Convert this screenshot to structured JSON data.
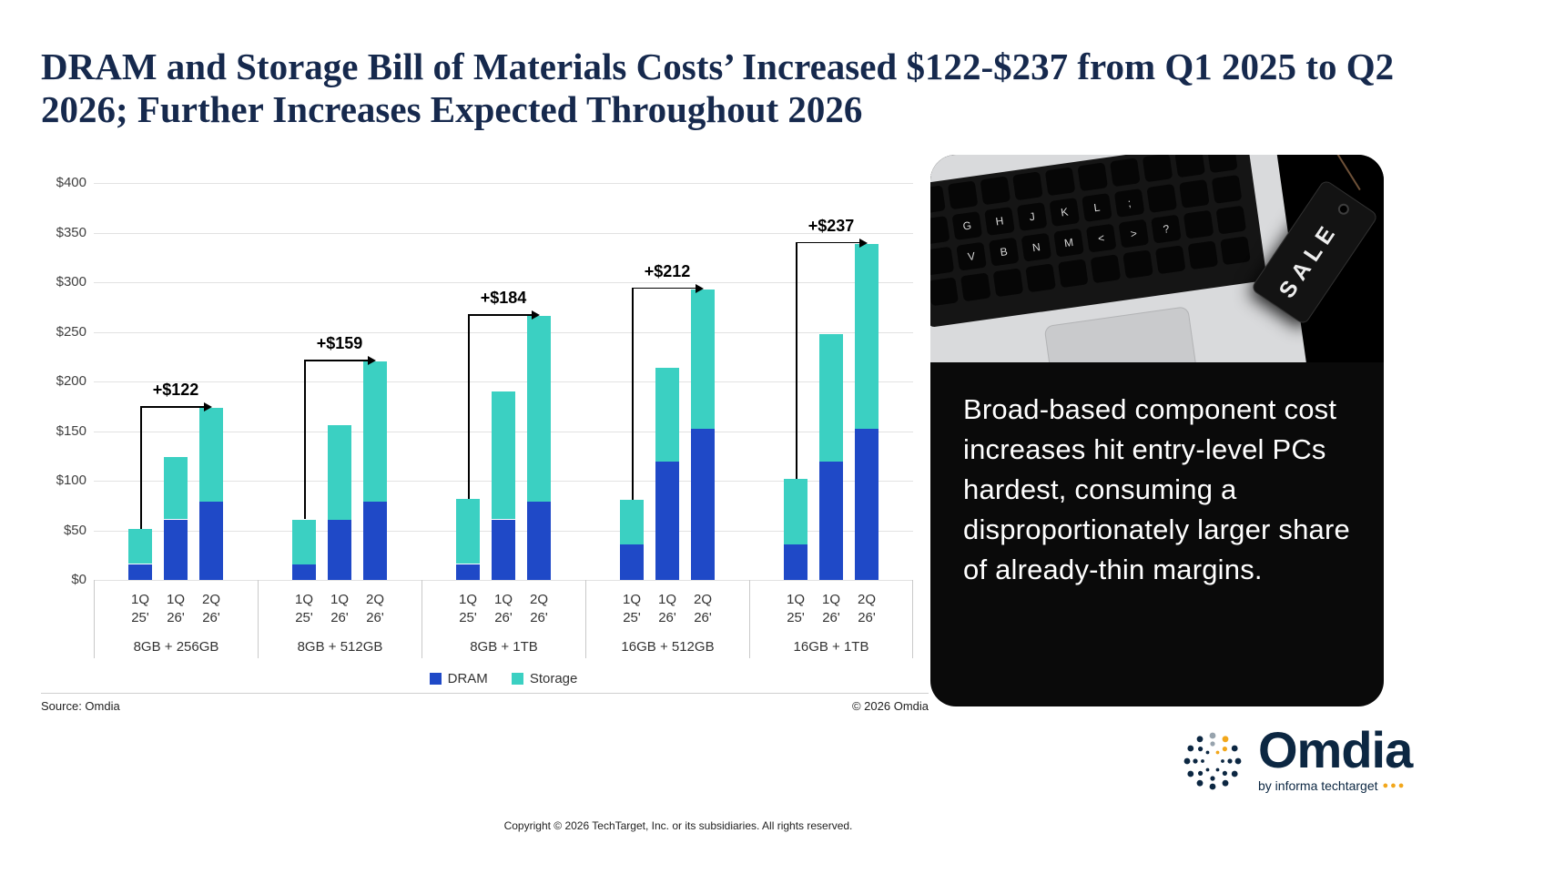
{
  "title": {
    "text": "DRAM and Storage Bill of Materials Costs’ Increased $122-$237 from Q1 2025 to Q2 2026; Further Increases Expected Throughout 2026"
  },
  "chart_data": {
    "type": "bar",
    "stacked": true,
    "title": "",
    "xlabel": "",
    "ylabel": "",
    "ylim": [
      0,
      400
    ],
    "ytick_step": 50,
    "ytick_labels": [
      "$0",
      "$50",
      "$100",
      "$150",
      "$200",
      "$250",
      "$300",
      "$350",
      "$400"
    ],
    "grid": true,
    "legend_position": "bottom",
    "series_names": [
      "DRAM",
      "Storage"
    ],
    "series_colors": [
      "#1f49c7",
      "#3bd0c2"
    ],
    "bar_labels": [
      [
        "1Q",
        "25'"
      ],
      [
        "1Q",
        "26'"
      ],
      [
        "2Q",
        "26'"
      ]
    ],
    "groups": [
      {
        "label": "8GB + 256GB",
        "annotation": "+$122",
        "dram": [
          16,
          61,
          79
        ],
        "storage": [
          35,
          63,
          94
        ]
      },
      {
        "label": "8GB + 512GB",
        "annotation": "+$159",
        "dram": [
          16,
          61,
          79
        ],
        "storage": [
          45,
          95,
          141
        ]
      },
      {
        "label": "8GB + 1TB",
        "annotation": "+$184",
        "dram": [
          16,
          61,
          79
        ],
        "storage": [
          66,
          129,
          187
        ]
      },
      {
        "label": "16GB + 512GB",
        "annotation": "+$212",
        "dram": [
          36,
          119,
          152
        ],
        "storage": [
          45,
          95,
          141
        ]
      },
      {
        "label": "16GB + 1TB",
        "annotation": "+$237",
        "dram": [
          36,
          119,
          152
        ],
        "storage": [
          66,
          129,
          187
        ]
      }
    ]
  },
  "chart_footer": {
    "source": "Source: Omdia",
    "copyright": "© 2026 Omdia"
  },
  "panel": {
    "text": "Broad-based component cost increases hit entry-level PCs hardest, consuming a disproportionately larger share of already-thin margins.",
    "sale_tag_label": "SALE",
    "keyboard_rows": [
      [
        "",
        "",
        "",
        "",
        "",
        "",
        "",
        "",
        "",
        ""
      ],
      [
        "",
        "G",
        "H",
        "J",
        "K",
        "L",
        ";",
        "",
        "",
        ""
      ],
      [
        "",
        "V",
        "B",
        "N",
        "M",
        "<",
        ">",
        "?",
        "",
        ""
      ],
      [
        "",
        "",
        "",
        "",
        "",
        "",
        "",
        "",
        "",
        ""
      ]
    ]
  },
  "footer": {
    "copyright": "Copyright © 2026 TechTarget, Inc. or its subsidiaries. All rights reserved."
  },
  "logo": {
    "name": "Omdia",
    "tagline": "by informa techtarget",
    "dots": "●●●"
  }
}
